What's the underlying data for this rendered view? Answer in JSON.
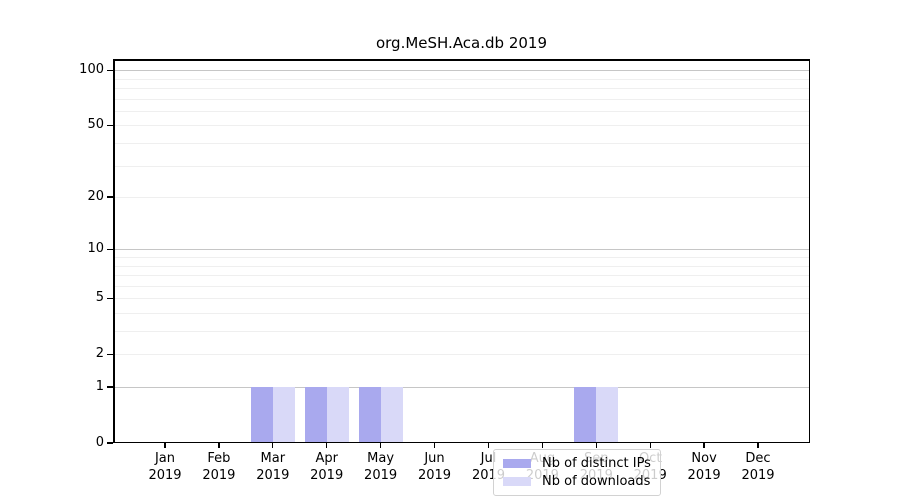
{
  "title": "org.MeSH.Aca.db 2019",
  "legend": {
    "items": [
      {
        "label": "Nb of distinct IPs",
        "color": "#a9a9ee"
      },
      {
        "label": "Nb of downloads",
        "color": "#d9d9f8"
      }
    ]
  },
  "chart_data": {
    "type": "bar",
    "title": "org.MeSH.Aca.db 2019",
    "categories": [
      "Jan 2019",
      "Feb 2019",
      "Mar 2019",
      "Apr 2019",
      "May 2019",
      "Jun 2019",
      "Jul 2019",
      "Aug 2019",
      "Sep 2019",
      "Oct 2019",
      "Nov 2019",
      "Dec 2019"
    ],
    "series": [
      {
        "name": "Nb of distinct IPs",
        "color": "#a9a9ee",
        "values": [
          0,
          0,
          1,
          1,
          1,
          0,
          0,
          0,
          1,
          0,
          0,
          0
        ]
      },
      {
        "name": "Nb of downloads",
        "color": "#d9d9f8",
        "values": [
          0,
          0,
          1,
          1,
          1,
          0,
          0,
          0,
          1,
          0,
          0,
          0
        ]
      }
    ],
    "xlabel": "",
    "ylabel": "",
    "y_scale": "log1p",
    "ylim": [
      0,
      115
    ],
    "y_ticks": [
      0,
      1,
      2,
      5,
      10,
      20,
      50,
      100
    ],
    "y_major_gridlines": [
      1,
      10,
      100
    ],
    "y_minor_gridlines": [
      2,
      3,
      4,
      5,
      6,
      7,
      8,
      9,
      20,
      30,
      40,
      50,
      60,
      70,
      80,
      90
    ],
    "grid": true,
    "legend_position": "inside lower center"
  }
}
